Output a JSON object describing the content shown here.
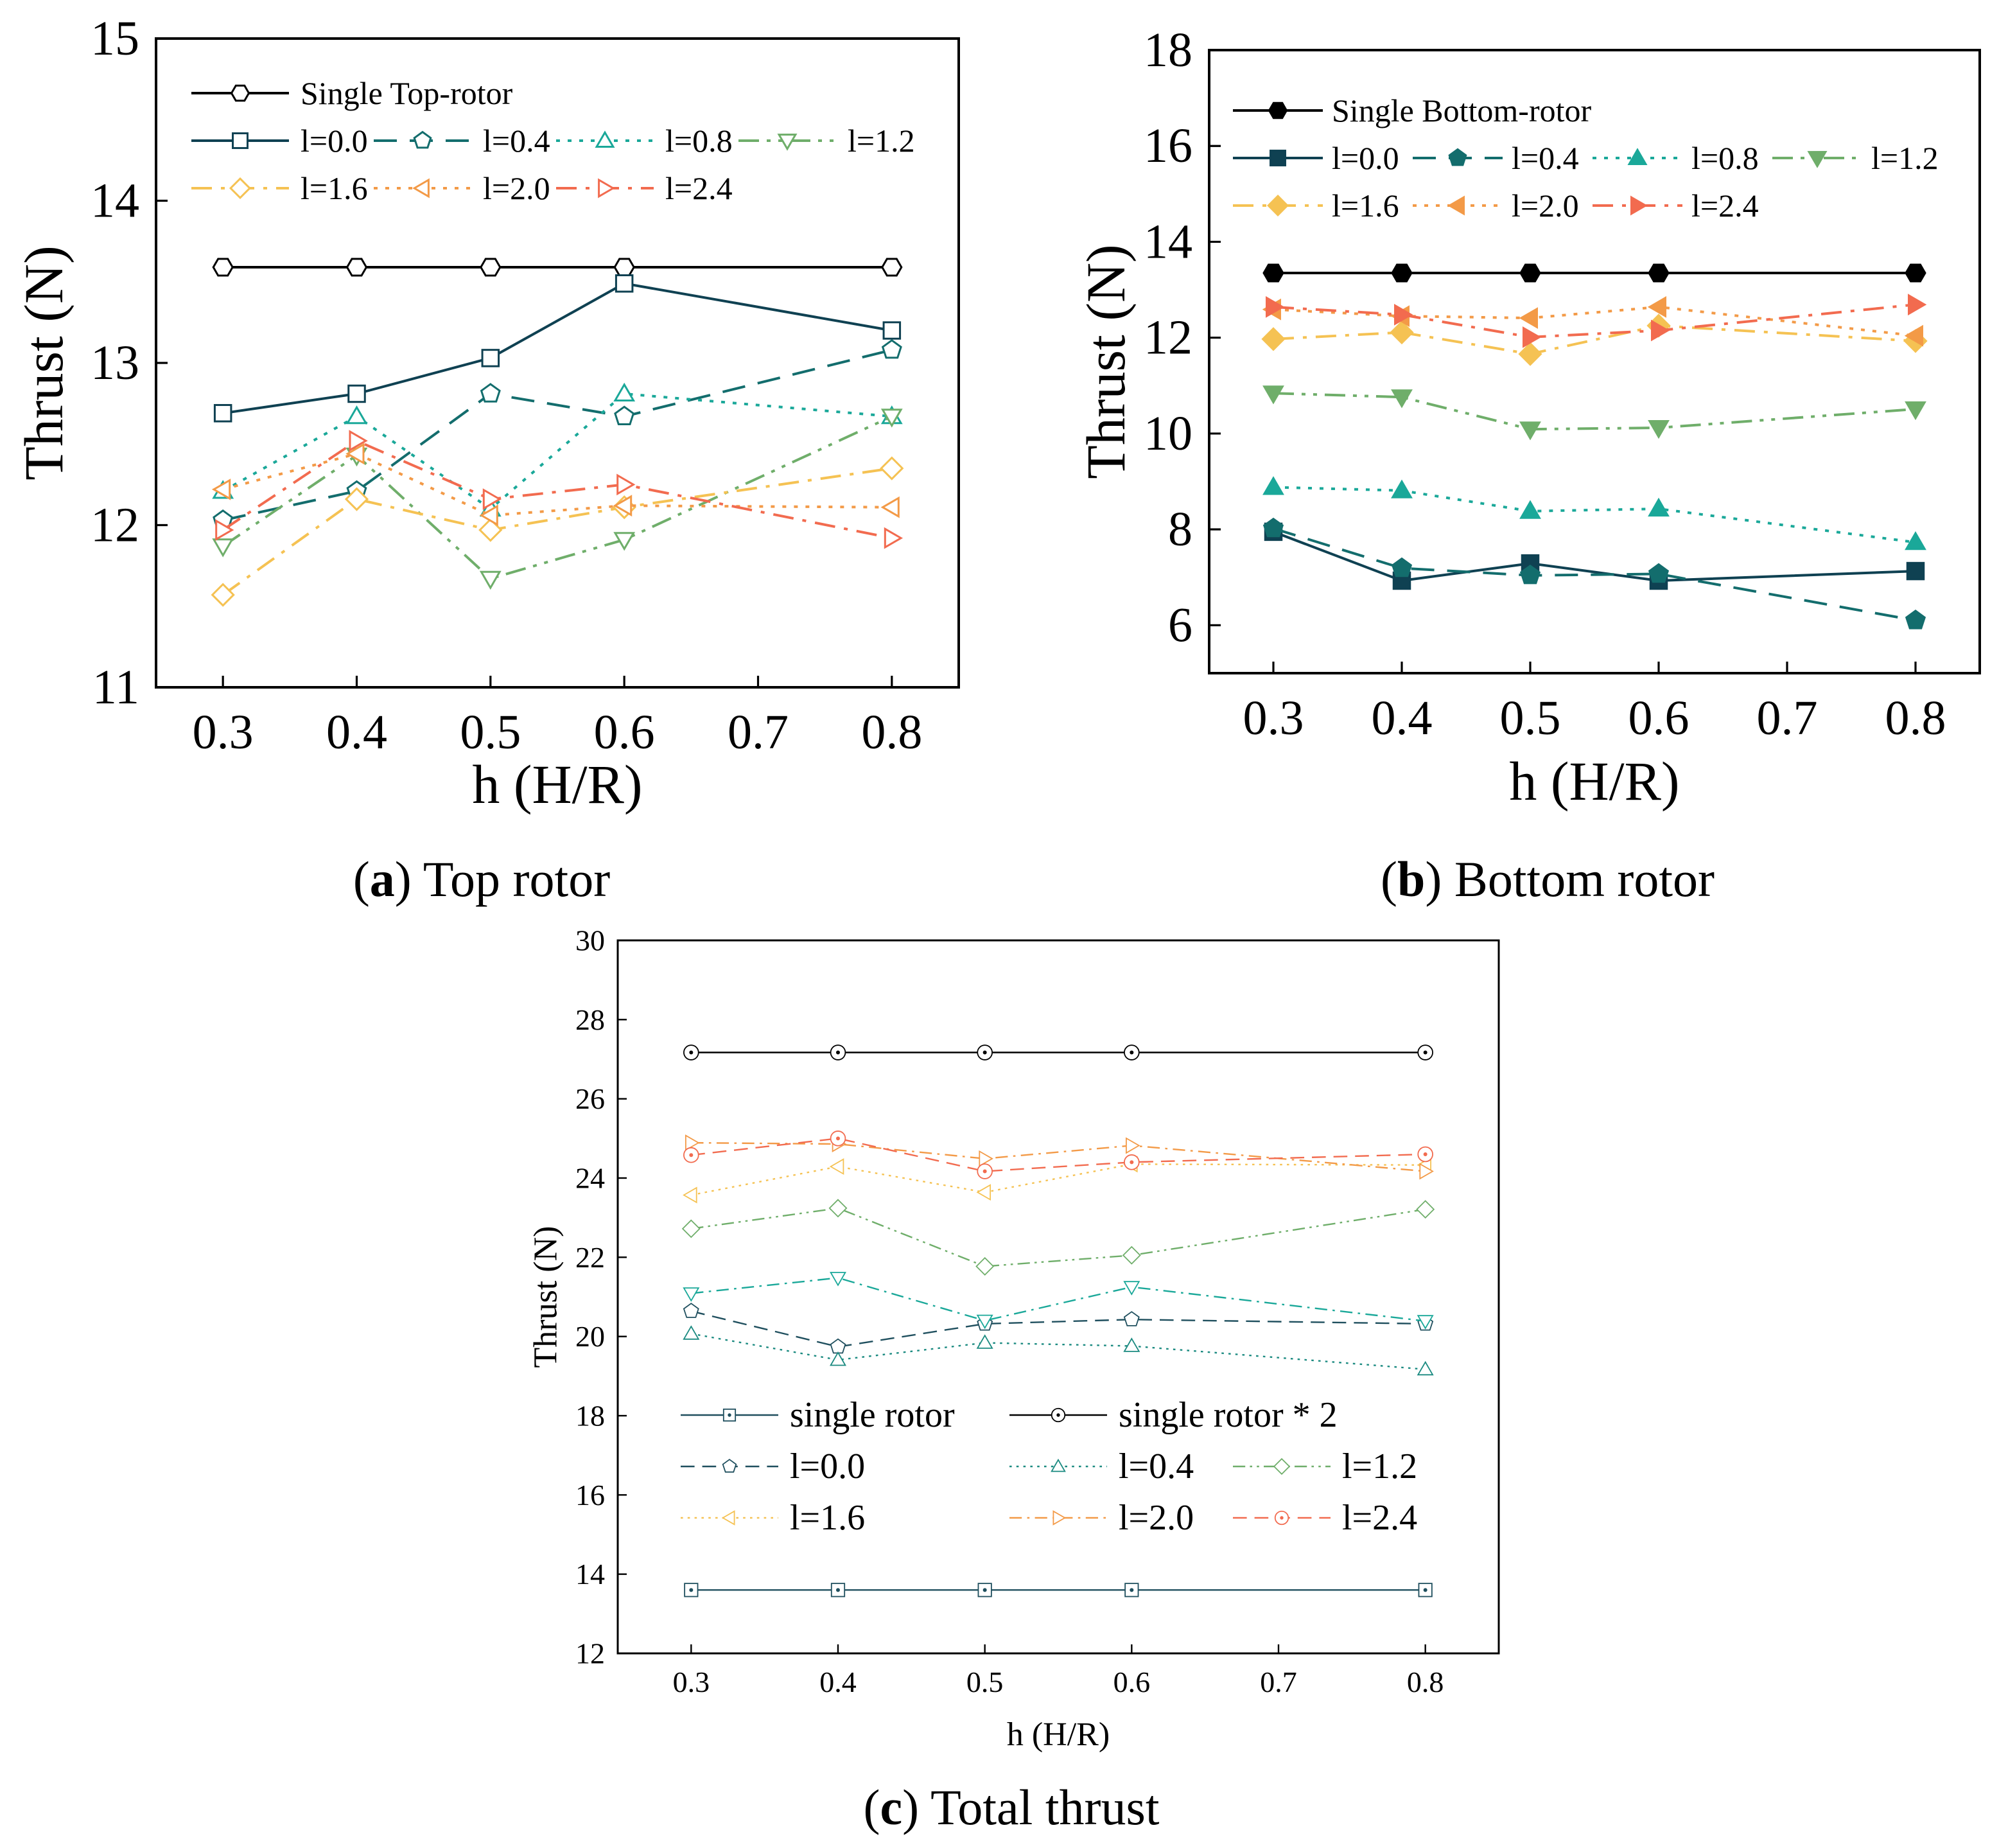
{
  "chart_data": [
    {
      "type": "line",
      "caption_letter": "a",
      "caption_text": "Top rotor",
      "title": "(a) Top rotor",
      "xlabel": "h (H/R)",
      "ylabel": "Thrust (N)",
      "xlim": [
        0.25,
        0.85
      ],
      "ylim": [
        11,
        15
      ],
      "xticks": [
        0.3,
        0.4,
        0.5,
        0.6,
        0.7,
        0.8
      ],
      "yticks": [
        11,
        12,
        13,
        14,
        15
      ],
      "x": [
        0.3,
        0.4,
        0.5,
        0.6,
        0.8
      ],
      "legend_position": "top-left",
      "series": [
        {
          "name": "Single Top-rotor",
          "color": "#000000",
          "dash": "solid",
          "marker": "hexagon",
          "filled": false,
          "values": [
            13.59,
            13.59,
            13.59,
            13.59,
            13.59
          ]
        },
        {
          "name": "l=0.0",
          "color": "#0f4152",
          "dash": "solid",
          "marker": "square",
          "filled": false,
          "values": [
            12.69,
            12.81,
            13.03,
            13.49,
            13.2
          ]
        },
        {
          "name": "l=0.4",
          "color": "#136d6d",
          "dash": "dash",
          "marker": "pentagon",
          "filled": false,
          "values": [
            12.03,
            12.21,
            12.81,
            12.67,
            13.08
          ]
        },
        {
          "name": "l=0.8",
          "color": "#1aa899",
          "dash": "dot",
          "marker": "triangle-up",
          "filled": false,
          "values": [
            12.21,
            12.67,
            12.1,
            12.81,
            12.67
          ]
        },
        {
          "name": "l=1.2",
          "color": "#6fae6a",
          "dash": "dashdotdot",
          "marker": "triangle-down",
          "filled": false,
          "values": [
            11.87,
            12.43,
            11.67,
            11.91,
            12.67
          ]
        },
        {
          "name": "l=1.6",
          "color": "#f5c253",
          "dash": "dashdot",
          "marker": "diamond",
          "filled": false,
          "values": [
            11.57,
            12.16,
            11.97,
            12.11,
            12.35
          ]
        },
        {
          "name": "l=2.0",
          "color": "#f39a47",
          "dash": "dot",
          "marker": "triangle-left",
          "filled": false,
          "values": [
            12.22,
            12.44,
            12.06,
            12.12,
            12.11
          ]
        },
        {
          "name": "l=2.4",
          "color": "#f26b4f",
          "dash": "dashdot",
          "marker": "triangle-right",
          "filled": false,
          "values": [
            11.97,
            12.52,
            12.16,
            12.25,
            11.92
          ]
        }
      ]
    },
    {
      "type": "line",
      "caption_letter": "b",
      "caption_text": "Bottom rotor",
      "title": "(b) Bottom rotor",
      "xlabel": "h (H/R)",
      "ylabel": "Thrust (N)",
      "xlim": [
        0.25,
        0.85
      ],
      "ylim": [
        5,
        18
      ],
      "xticks": [
        0.3,
        0.4,
        0.5,
        0.6,
        0.7,
        0.8
      ],
      "yticks": [
        6,
        8,
        10,
        12,
        14,
        16,
        18
      ],
      "x": [
        0.3,
        0.4,
        0.5,
        0.6,
        0.8
      ],
      "legend_position": "top-left",
      "series": [
        {
          "name": "Single Bottom-rotor",
          "color": "#000000",
          "dash": "solid",
          "marker": "hexagon",
          "filled": true,
          "values": [
            13.35,
            13.35,
            13.35,
            13.35,
            13.35
          ]
        },
        {
          "name": "l=0.0",
          "color": "#0f4152",
          "dash": "solid",
          "marker": "square",
          "filled": true,
          "values": [
            7.95,
            6.93,
            7.29,
            6.93,
            7.13
          ]
        },
        {
          "name": "l=0.4",
          "color": "#136d6d",
          "dash": "dash",
          "marker": "pentagon",
          "filled": true,
          "values": [
            8.02,
            7.19,
            7.04,
            7.07,
            6.1
          ]
        },
        {
          "name": "l=0.8",
          "color": "#1aa899",
          "dash": "dot",
          "marker": "triangle-up",
          "filled": true,
          "values": [
            8.88,
            8.81,
            8.38,
            8.43,
            7.73
          ]
        },
        {
          "name": "l=1.2",
          "color": "#6fae6a",
          "dash": "dashdotdot",
          "marker": "triangle-down",
          "filled": true,
          "values": [
            10.84,
            10.76,
            10.09,
            10.12,
            10.51
          ]
        },
        {
          "name": "l=1.6",
          "color": "#f5c253",
          "dash": "dashdot",
          "marker": "diamond",
          "filled": true,
          "values": [
            11.97,
            12.11,
            11.66,
            12.25,
            11.93
          ]
        },
        {
          "name": "l=2.0",
          "color": "#f39a47",
          "dash": "dot",
          "marker": "triangle-left",
          "filled": true,
          "values": [
            12.59,
            12.45,
            12.41,
            12.64,
            12.04
          ]
        },
        {
          "name": "l=2.4",
          "color": "#f26b4f",
          "dash": "dashdot",
          "marker": "triangle-right",
          "filled": true,
          "values": [
            12.64,
            12.48,
            12.01,
            12.15,
            12.69
          ]
        }
      ]
    },
    {
      "type": "line",
      "caption_letter": "c",
      "caption_text": "Total thrust",
      "title": "(c) Total thrust",
      "xlabel": "h (H/R)",
      "ylabel": "Thrust (N)",
      "xlim": [
        0.25,
        0.85
      ],
      "ylim": [
        12,
        30
      ],
      "xticks": [
        0.3,
        0.4,
        0.5,
        0.6,
        0.7,
        0.8
      ],
      "yticks": [
        12,
        14,
        16,
        18,
        20,
        22,
        24,
        26,
        28,
        30
      ],
      "x": [
        0.3,
        0.4,
        0.5,
        0.6,
        0.8
      ],
      "legend_position": "bottom-left",
      "series": [
        {
          "name": "single rotor",
          "color": "#1f4f5e",
          "dash": "solid",
          "marker": "square-dot",
          "filled": false,
          "values": [
            13.6,
            13.6,
            13.6,
            13.6,
            13.6
          ]
        },
        {
          "name": "single rotor * 2",
          "color": "#000000",
          "dash": "solid",
          "marker": "circle-dot",
          "filled": false,
          "values": [
            27.17,
            27.17,
            27.17,
            27.17,
            27.17
          ]
        },
        {
          "name": "l=0.0",
          "color": "#1f4f5e",
          "dash": "dash",
          "marker": "pentagon",
          "filled": false,
          "values": [
            20.64,
            19.74,
            20.32,
            20.43,
            20.32
          ]
        },
        {
          "name": "l=0.4",
          "color": "#1a8a80",
          "dash": "dot",
          "marker": "triangle-up",
          "filled": false,
          "values": [
            20.07,
            19.41,
            19.84,
            19.76,
            19.17
          ]
        },
        {
          "name": "l=0.8",
          "color": "#1aa899",
          "dash": "dashdot",
          "marker": "triangle-down",
          "filled": false,
          "values": [
            21.09,
            21.48,
            20.4,
            21.25,
            20.39
          ],
          "in_legend": false
        },
        {
          "name": "l=1.2",
          "color": "#6fae6a",
          "dash": "dashdotdot",
          "marker": "diamond",
          "filled": false,
          "values": [
            22.72,
            23.24,
            21.77,
            22.05,
            23.21
          ]
        },
        {
          "name": "l=1.6",
          "color": "#f5c253",
          "dash": "dot",
          "marker": "triangle-left",
          "filled": false,
          "values": [
            23.57,
            24.29,
            23.64,
            24.35,
            24.33
          ]
        },
        {
          "name": "l=2.0",
          "color": "#f39a47",
          "dash": "dashdot",
          "marker": "triangle-right",
          "filled": false,
          "values": [
            24.89,
            24.86,
            24.49,
            24.82,
            24.17
          ]
        },
        {
          "name": "l=2.4",
          "color": "#f26b4f",
          "dash": "dash",
          "marker": "circle-dot",
          "filled": false,
          "values": [
            24.58,
            25.0,
            24.17,
            24.4,
            24.6
          ]
        }
      ]
    }
  ]
}
